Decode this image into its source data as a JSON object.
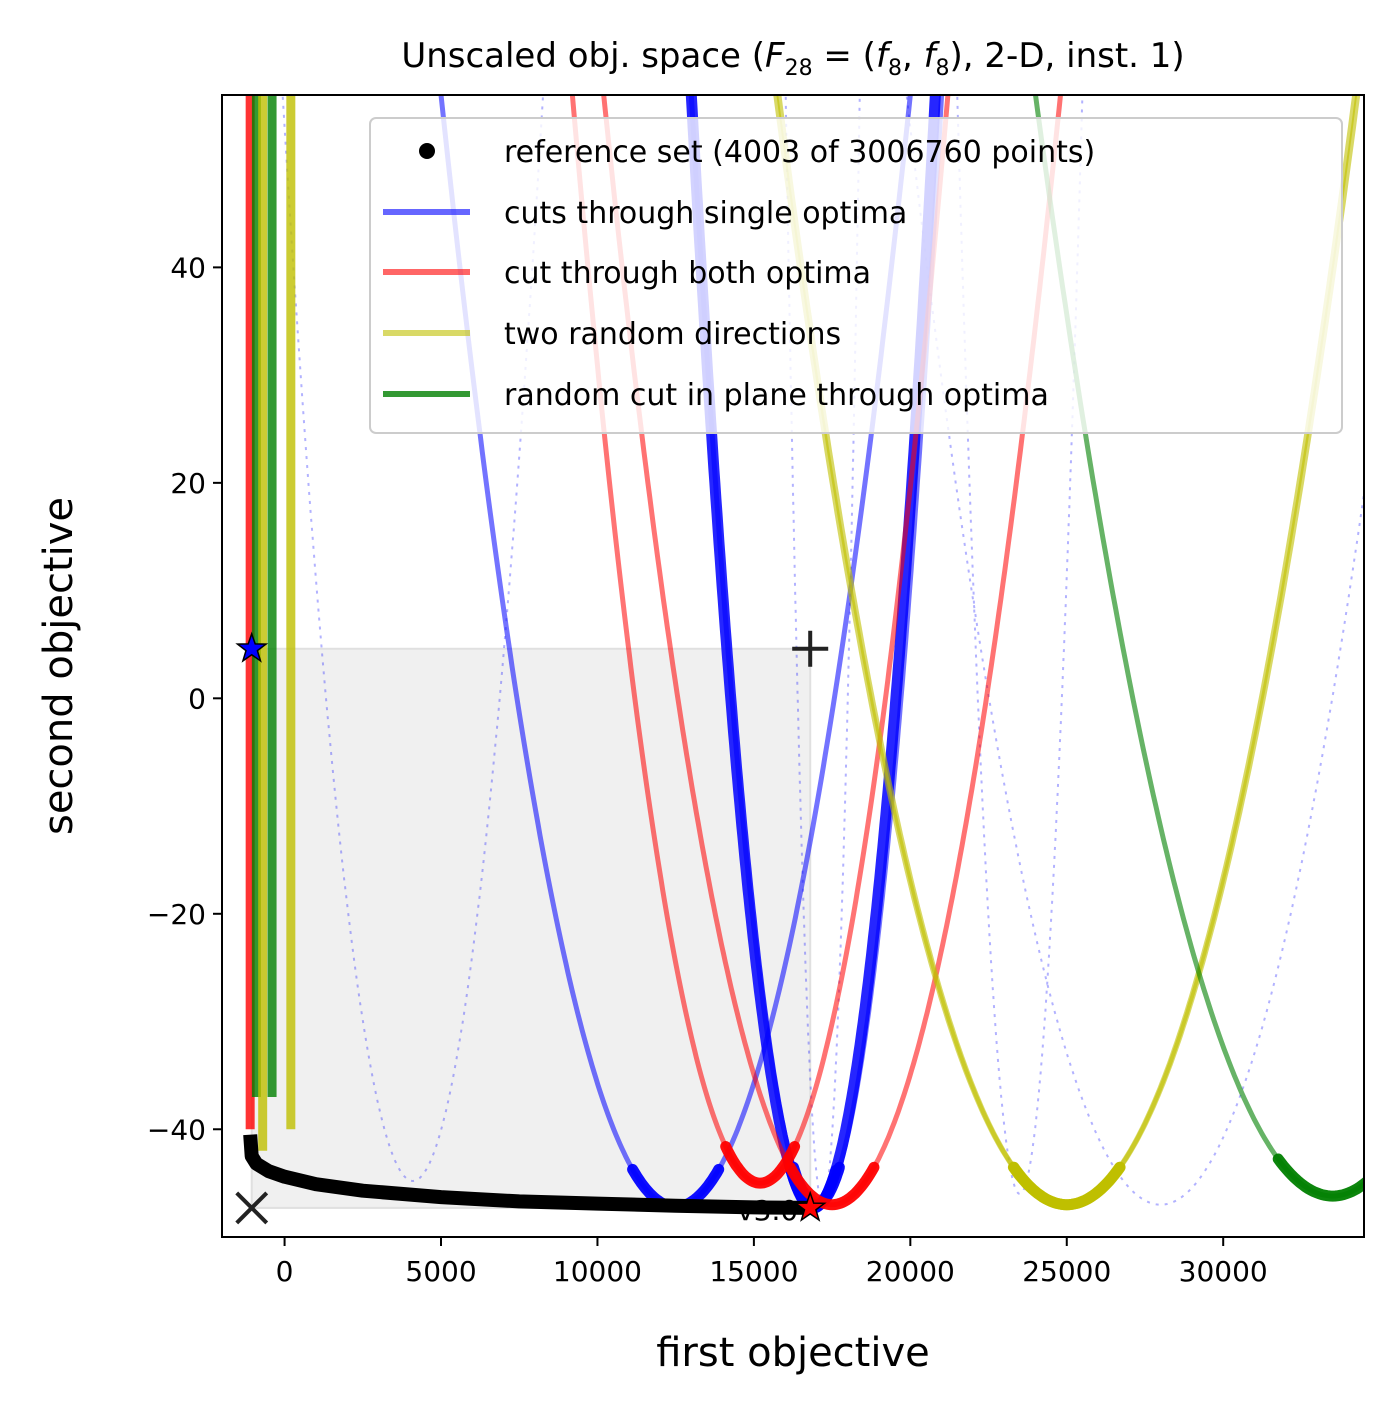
{
  "chart_data": {
    "type": "line",
    "title": "Unscaled obj. space (F₂₈ = (f₈, f₈), 2-D, inst. 1)",
    "title_parts": {
      "prefix": "Unscaled obj. space (",
      "F": "F",
      "F_sub": "28",
      "eq": " = (",
      "f1": "f",
      "f1_sub": "8",
      "comma": ", ",
      "f2": "f",
      "f2_sub": "8",
      "suffix": "), 2-D, inst. 1)"
    },
    "xlabel": "first objective",
    "ylabel": "second objective",
    "xlim": [
      -2000,
      34500
    ],
    "ylim": [
      -50,
      56
    ],
    "x_ticks": [
      0,
      5000,
      10000,
      15000,
      20000,
      25000,
      30000
    ],
    "x_tick_labels": [
      "0",
      "5000",
      "10000",
      "15000",
      "20000",
      "25000",
      "30000"
    ],
    "y_ticks": [
      -40,
      -20,
      0,
      20,
      40
    ],
    "y_tick_labels": [
      "−40",
      "−20",
      "0",
      "20",
      "40"
    ],
    "legend": {
      "placement": "upper right",
      "entries": [
        {
          "label": "reference set (4003 of 3006760 points)",
          "marker": "dot",
          "color": "#000000"
        },
        {
          "label": "cuts through single optima",
          "marker": "line",
          "color": "#0000ff"
        },
        {
          "label": "cut through both optima",
          "marker": "line",
          "color": "#ff0000"
        },
        {
          "label": "two random directions",
          "marker": "line",
          "color": "#bfbf00"
        },
        {
          "label": "random cut in plane through optima",
          "marker": "line",
          "color": "#008000"
        }
      ]
    },
    "version_label": "v3.0",
    "region_of_interest": {
      "x": [
        -1050,
        16800
      ],
      "y": [
        -47.3,
        4.6
      ]
    },
    "nadir_marker": {
      "symbol": "+",
      "x": 16800,
      "y": 4.6
    },
    "ideal_marker": {
      "symbol": "×",
      "x": -1050,
      "y": -47.3
    },
    "optima_stars": [
      {
        "x": -1050,
        "y": 4.6,
        "color": "#0000ff"
      },
      {
        "x": 16800,
        "y": -47.3,
        "color": "#ff0000"
      }
    ],
    "reference_front": {
      "x": [
        -1100,
        -1050,
        -900,
        -500,
        0,
        1000,
        2500,
        5000,
        7500,
        10000,
        12500,
        15000,
        16800
      ],
      "y": [
        -40.5,
        -42.5,
        -43.2,
        -43.9,
        -44.4,
        -45.1,
        -45.7,
        -46.3,
        -46.7,
        -46.9,
        -47.1,
        -47.25,
        -47.3
      ]
    },
    "parabolas": [
      {
        "series": "single_solid_a",
        "color": "#0000ff",
        "opacity": 0.55,
        "vertex": [
          12500,
          -47.2
        ],
        "through": [
          5000,
          56
        ]
      },
      {
        "series": "single_solid_b",
        "color": "#0000ff",
        "opacity": 0.55,
        "vertex": [
          17000,
          -47.0
        ],
        "through": [
          21000,
          56
        ]
      },
      {
        "series": "single_thick",
        "color": "#0000ff",
        "opacity": 0.85,
        "vertex": [
          16900,
          -47.3
        ],
        "through": [
          13000,
          56
        ]
      },
      {
        "series": "single_dotted_a",
        "color": "#0000ff",
        "opacity": 0.3,
        "vertex": [
          4100,
          -44.8
        ],
        "through": [
          0,
          53
        ]
      },
      {
        "series": "single_dotted_b",
        "color": "#0000ff",
        "opacity": 0.3,
        "vertex": [
          17200,
          -47.0
        ],
        "through": [
          16400,
          0
        ]
      },
      {
        "series": "single_dotted_c",
        "color": "#0000ff",
        "opacity": 0.3,
        "vertex": [
          28000,
          -47.0
        ],
        "through": [
          34300,
          15
        ]
      },
      {
        "series": "single_dotted_d",
        "color": "#0000ff",
        "opacity": 0.3,
        "vertex": [
          23500,
          -46.0
        ],
        "through": [
          25500,
          56
        ]
      },
      {
        "series": "both_a",
        "color": "#ff0000",
        "opacity": 0.55,
        "vertex": [
          15200,
          -45.0
        ],
        "through": [
          9200,
          56
        ]
      },
      {
        "series": "both_b",
        "color": "#ff0000",
        "opacity": 0.55,
        "vertex": [
          17500,
          -47.0
        ],
        "through": [
          24800,
          56
        ]
      },
      {
        "series": "random_a",
        "color": "#bfbf00",
        "opacity": 0.6,
        "vertex": [
          25000,
          -47.0
        ],
        "through": [
          15800,
          56
        ]
      },
      {
        "series": "random_b",
        "color": "#bfbf00",
        "opacity": 0.6,
        "vertex": [
          25000,
          -47.0
        ],
        "through": [
          34300,
          56
        ]
      },
      {
        "series": "plane_a",
        "color": "#008000",
        "opacity": 0.6,
        "vertex": [
          33500,
          -46.2
        ],
        "through": [
          24000,
          56
        ]
      }
    ],
    "vertical_strands": [
      {
        "color": "#ff0000",
        "x": -1100,
        "y": [
          -40,
          56
        ]
      },
      {
        "color": "#008000",
        "x": -900,
        "y": [
          -37,
          56
        ]
      },
      {
        "color": "#bfbf00",
        "x": -700,
        "y": [
          -42,
          56
        ]
      },
      {
        "color": "#008000",
        "x": -400,
        "y": [
          -37,
          56
        ]
      },
      {
        "color": "#bfbf00",
        "x": 200,
        "y": [
          -40,
          56
        ]
      }
    ]
  }
}
